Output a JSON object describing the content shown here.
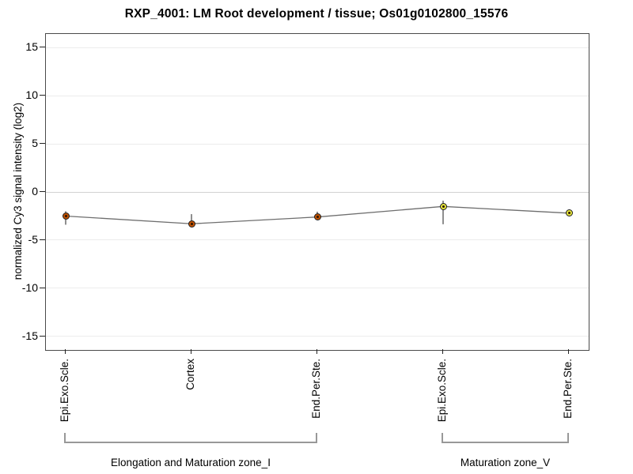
{
  "title": "RXP_4001: LM Root development / tissue; Os01g0102800_15576",
  "chart_data": {
    "type": "line",
    "title": "RXP_4001: LM Root development / tissue; Os01g0102800_15576",
    "xlabel": "",
    "ylabel": "normalized Cy3 signal intensity (log2)",
    "ylim": [
      -16.4,
      16.4
    ],
    "yticks": [
      15,
      10,
      5,
      0,
      -5,
      -10,
      -15
    ],
    "grid": true,
    "legend": "none",
    "categories": [
      "Epi.Exo.Scle.",
      "Cortex",
      "End.Per.Ste.",
      "Epi.Exo.Scle.",
      "End.Per.Ste."
    ],
    "series": [
      {
        "name": "normalized Cy3 signal intensity",
        "values": [
          -2.5,
          -3.3,
          -2.6,
          -1.5,
          -2.2
        ],
        "error_low": [
          -3.4,
          -3.45,
          -2.9,
          -3.35,
          -2.4
        ],
        "error_high": [
          -2.0,
          -2.3,
          -2.05,
          -0.9,
          -2.1
        ]
      }
    ],
    "point_colors": [
      "#c25200",
      "#c25200",
      "#c25200",
      "#e6e63c",
      "#e6e63c"
    ],
    "point_border_color": "#1d1d1d",
    "line_color": "#6e6e6e",
    "error_bar_color": "#333333",
    "grid_color": "#ececec",
    "zero_grid_color": "#d2d2d2",
    "groups": [
      {
        "label": "Elongation and Maturation zone_I",
        "from": 0,
        "to": 2
      },
      {
        "label": "Maturation zone_V",
        "from": 3,
        "to": 4
      }
    ]
  }
}
